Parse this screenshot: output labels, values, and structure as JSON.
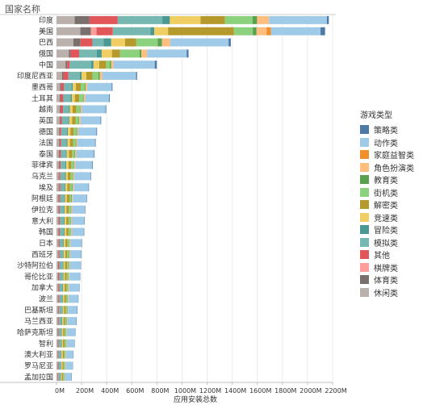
{
  "chart_data": {
    "type": "bar",
    "orientation": "horizontal",
    "stacked": true,
    "title": "",
    "xlabel": "应用安装总数",
    "ylabel": "国家名称",
    "xlim": [
      0,
      2200
    ],
    "x_unit": "M",
    "x_ticks": [
      "0M",
      "200M",
      "400M",
      "600M",
      "800M",
      "1000M",
      "1200M",
      "1400M",
      "1600M",
      "1800M",
      "2000M",
      "2200M"
    ],
    "categories": [
      "印度",
      "美国",
      "巴西",
      "俄国",
      "中国",
      "印度尼西亚",
      "墨西哥",
      "土耳其",
      "越南",
      "英国",
      "德国",
      "法国",
      "泰国",
      "菲律宾",
      "乌克兰",
      "埃及",
      "阿根廷",
      "伊拉克",
      "意大利",
      "韩国",
      "日本",
      "西班牙",
      "沙特阿拉伯",
      "哥伦比亚",
      "加拿大",
      "波兰",
      "巴基斯坦",
      "马兰西亚",
      "哈萨克斯坦",
      "智利",
      "澳大利亚",
      "罗马尼亚",
      "孟加拉国"
    ],
    "legend_title": "游戏类型",
    "series": [
      {
        "name": "休闲类",
        "color": "#bab0ac",
        "values": [
          145,
          190,
          135,
          98,
          72,
          45,
          28,
          26,
          26,
          24,
          20,
          20,
          18,
          18,
          17,
          17,
          16,
          15,
          15,
          15,
          14,
          14,
          13,
          13,
          12,
          12,
          11,
          11,
          10,
          10,
          9,
          9,
          8
        ]
      },
      {
        "name": "体育类",
        "color": "#79706e",
        "values": [
          118,
          84,
          56,
          14,
          13,
          10,
          8,
          6,
          6,
          6,
          5,
          5,
          5,
          4,
          4,
          4,
          4,
          4,
          4,
          4,
          3,
          3,
          3,
          3,
          3,
          3,
          3,
          3,
          2,
          2,
          2,
          2,
          2
        ]
      },
      {
        "name": "棋牌类",
        "color": "#ff9d9a",
        "values": [
          0,
          45,
          0,
          0,
          0,
          0,
          0,
          0,
          0,
          0,
          0,
          0,
          0,
          0,
          0,
          0,
          0,
          0,
          0,
          0,
          0,
          0,
          0,
          0,
          0,
          0,
          0,
          0,
          0,
          0,
          0,
          0,
          0
        ]
      },
      {
        "name": "其他",
        "color": "#e15759",
        "values": [
          225,
          130,
          95,
          68,
          20,
          40,
          22,
          22,
          20,
          14,
          12,
          12,
          12,
          11,
          10,
          10,
          10,
          9,
          9,
          9,
          8,
          8,
          8,
          8,
          8,
          7,
          7,
          6,
          6,
          6,
          6,
          5,
          5
        ]
      },
      {
        "name": "模拟类",
        "color": "#76b7b2",
        "values": [
          355,
          300,
          90,
          140,
          170,
          90,
          62,
          58,
          46,
          50,
          46,
          42,
          40,
          38,
          36,
          34,
          32,
          31,
          30,
          30,
          28,
          27,
          27,
          26,
          25,
          24,
          23,
          22,
          21,
          20,
          19,
          18,
          17
        ]
      },
      {
        "name": "冒险类",
        "color": "#499894",
        "values": [
          60,
          30,
          60,
          40,
          20,
          15,
          10,
          10,
          8,
          8,
          8,
          8,
          7,
          7,
          7,
          7,
          6,
          6,
          6,
          6,
          5,
          5,
          5,
          5,
          5,
          5,
          5,
          4,
          4,
          4,
          4,
          4,
          3
        ]
      },
      {
        "name": "竞速类",
        "color": "#f1ce63",
        "values": [
          245,
          110,
          110,
          82,
          45,
          38,
          25,
          24,
          22,
          22,
          20,
          20,
          18,
          17,
          16,
          15,
          15,
          14,
          14,
          14,
          13,
          13,
          12,
          12,
          12,
          11,
          11,
          10,
          10,
          10,
          9,
          9,
          8
        ]
      },
      {
        "name": "解密类",
        "color": "#b6992d",
        "values": [
          195,
          525,
          90,
          65,
          55,
          48,
          38,
          35,
          30,
          28,
          26,
          25,
          24,
          23,
          22,
          21,
          20,
          19,
          18,
          18,
          17,
          16,
          16,
          15,
          15,
          14,
          13,
          13,
          12,
          12,
          11,
          10,
          10
        ]
      },
      {
        "name": "街机类",
        "color": "#8cd17d",
        "values": [
          220,
          150,
          170,
          155,
          30,
          48,
          32,
          30,
          27,
          24,
          22,
          21,
          20,
          19,
          18,
          17,
          16,
          16,
          15,
          15,
          14,
          14,
          13,
          13,
          12,
          12,
          11,
          11,
          10,
          10,
          9,
          9,
          8
        ]
      },
      {
        "name": "教育类",
        "color": "#59a14f",
        "values": [
          35,
          30,
          35,
          15,
          10,
          10,
          6,
          6,
          5,
          5,
          5,
          5,
          5,
          4,
          4,
          4,
          4,
          4,
          4,
          4,
          3,
          3,
          3,
          3,
          3,
          3,
          3,
          3,
          2,
          2,
          2,
          2,
          2
        ]
      },
      {
        "name": "角色扮演类",
        "color": "#ffbe7d",
        "values": [
          95,
          80,
          65,
          45,
          18,
          20,
          14,
          12,
          10,
          10,
          9,
          9,
          9,
          8,
          8,
          8,
          7,
          7,
          7,
          7,
          6,
          6,
          6,
          6,
          6,
          5,
          5,
          5,
          5,
          5,
          4,
          4,
          4
        ]
      },
      {
        "name": "家庭益智类",
        "color": "#f28e2b",
        "values": [
          0,
          35,
          0,
          0,
          0,
          0,
          0,
          0,
          0,
          0,
          0,
          0,
          0,
          0,
          0,
          0,
          0,
          0,
          0,
          0,
          0,
          0,
          0,
          0,
          0,
          0,
          0,
          0,
          0,
          0,
          0,
          0,
          0
        ]
      },
      {
        "name": "动作类",
        "color": "#a0cbe8",
        "values": [
          462,
          395,
          465,
          315,
          330,
          270,
          195,
          190,
          190,
          160,
          145,
          140,
          140,
          135,
          130,
          118,
          108,
          100,
          98,
          95,
          90,
          88,
          86,
          82,
          80,
          76,
          72,
          70,
          66,
          62,
          58,
          56,
          52
        ]
      },
      {
        "name": "策略类",
        "color": "#4e79a7",
        "values": [
          15,
          36,
          18,
          15,
          16,
          8,
          6,
          6,
          6,
          5,
          5,
          5,
          5,
          5,
          4,
          4,
          4,
          4,
          4,
          4,
          3,
          3,
          3,
          3,
          3,
          3,
          3,
          3,
          3,
          2,
          2,
          2,
          2
        ]
      }
    ],
    "legend_order": [
      "策略类",
      "动作类",
      "家庭益智类",
      "角色扮演类",
      "教育类",
      "街机类",
      "解密类",
      "竞速类",
      "冒险类",
      "模拟类",
      "其他",
      "棋牌类",
      "体育类",
      "休闲类"
    ],
    "grid": true,
    "legend_position": "right"
  }
}
